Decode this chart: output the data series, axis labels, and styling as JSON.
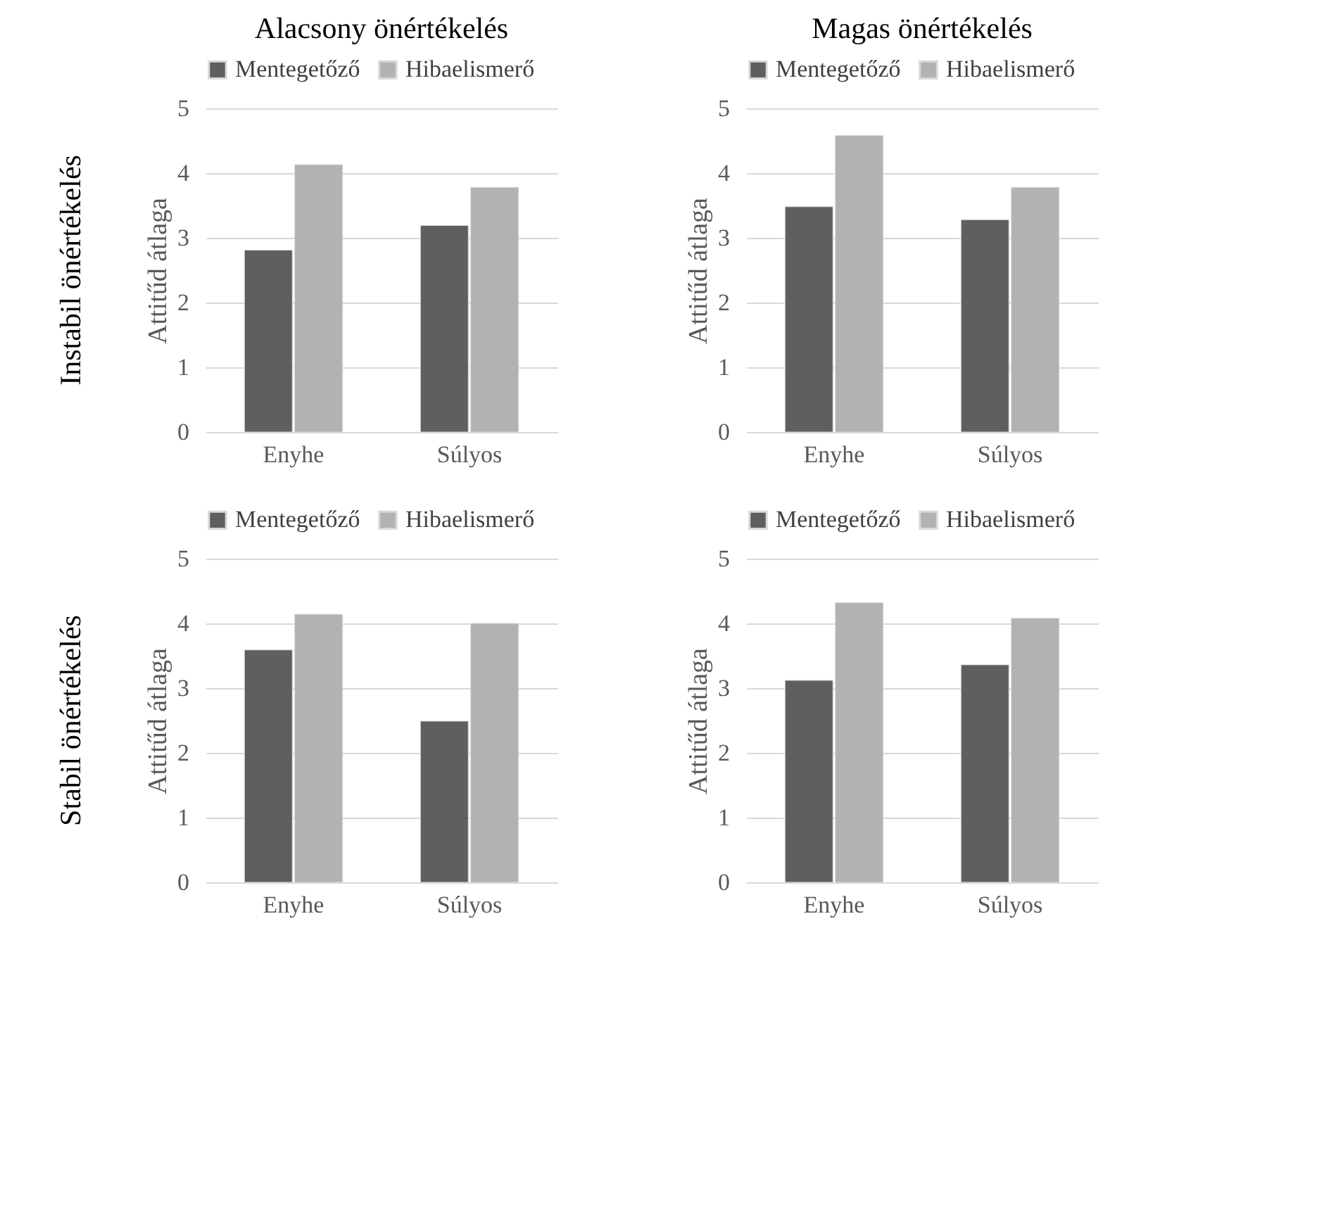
{
  "chart_data": [
    {
      "type": "bar",
      "title": "Alacsony önértékelés",
      "annotations": [
        "Instabil önértékelés"
      ],
      "ylabel": "Attitűd átlaga",
      "categories": [
        "Enyhe",
        "Súlyos"
      ],
      "series": [
        {
          "name": "Mentegetőző",
          "color": "#5f5f5f",
          "values": [
            2.81,
            3.19
          ]
        },
        {
          "name": "Hibaelismerő",
          "color": "#b2b2b2",
          "values": [
            4.13,
            3.78
          ]
        }
      ],
      "ylim": [
        0,
        5
      ],
      "yticks": [
        0,
        1,
        2,
        3,
        4,
        5
      ],
      "grid": "y",
      "legend": "top"
    },
    {
      "type": "bar",
      "title": "Magas önértékelés",
      "ylabel": "Attitűd átlaga",
      "categories": [
        "Enyhe",
        "Súlyos"
      ],
      "series": [
        {
          "name": "Mentegetőző",
          "color": "#5f5f5f",
          "values": [
            3.48,
            3.28
          ]
        },
        {
          "name": "Hibaelismerő",
          "color": "#b2b2b2",
          "values": [
            4.58,
            3.78
          ]
        }
      ],
      "ylim": [
        0,
        5
      ],
      "yticks": [
        0,
        1,
        2,
        3,
        4,
        5
      ],
      "grid": "y",
      "legend": "top"
    },
    {
      "type": "bar",
      "annotations": [
        "Stabil önértékelés"
      ],
      "ylabel": "Attitűd átlaga",
      "categories": [
        "Enyhe",
        "Súlyos"
      ],
      "series": [
        {
          "name": "Mentegetőző",
          "color": "#5f5f5f",
          "values": [
            3.59,
            2.49
          ]
        },
        {
          "name": "Hibaelismerő",
          "color": "#b2b2b2",
          "values": [
            4.14,
            4.0
          ]
        }
      ],
      "ylim": [
        0,
        5
      ],
      "yticks": [
        0,
        1,
        2,
        3,
        4,
        5
      ],
      "grid": "y",
      "legend": "top"
    },
    {
      "type": "bar",
      "ylabel": "Attitűd átlaga",
      "categories": [
        "Enyhe",
        "Súlyos"
      ],
      "series": [
        {
          "name": "Mentegetőző",
          "color": "#5f5f5f",
          "values": [
            3.12,
            3.36
          ]
        },
        {
          "name": "Hibaelismerő",
          "color": "#b2b2b2",
          "values": [
            4.32,
            4.08
          ]
        }
      ],
      "ylim": [
        0,
        5
      ],
      "yticks": [
        0,
        1,
        2,
        3,
        4,
        5
      ],
      "grid": "y",
      "legend": "top"
    }
  ]
}
